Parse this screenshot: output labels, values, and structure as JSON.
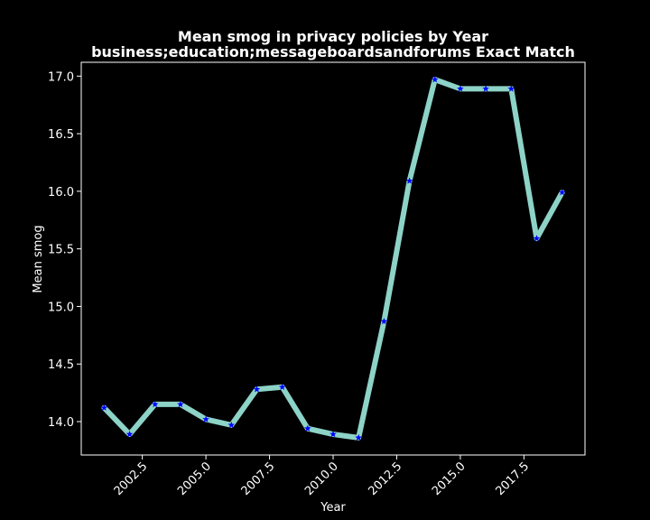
{
  "chart_data": {
    "type": "line",
    "title": "Mean smog in privacy policies by Year",
    "subtitle": "business;education;messageboardsandforums Exact Match",
    "xlabel": "Year",
    "ylabel": "Mean smog",
    "xlim": [
      2000.1,
      2019.9
    ],
    "ylim": [
      13.71,
      17.12
    ],
    "x_ticks": [
      {
        "value": 2002.5,
        "label": "2002.5"
      },
      {
        "value": 2005.0,
        "label": "2005.0"
      },
      {
        "value": 2007.5,
        "label": "2007.5"
      },
      {
        "value": 2010.0,
        "label": "2010.0"
      },
      {
        "value": 2012.5,
        "label": "2012.5"
      },
      {
        "value": 2015.0,
        "label": "2015.0"
      },
      {
        "value": 2017.5,
        "label": "2017.5"
      }
    ],
    "y_ticks": [
      {
        "value": 14.0,
        "label": "14.0"
      },
      {
        "value": 14.5,
        "label": "14.5"
      },
      {
        "value": 15.0,
        "label": "15.0"
      },
      {
        "value": 15.5,
        "label": "15.5"
      },
      {
        "value": 16.0,
        "label": "16.0"
      },
      {
        "value": 16.5,
        "label": "16.5"
      },
      {
        "value": 17.0,
        "label": "17.0"
      }
    ],
    "grid": false,
    "series": [
      {
        "x": [
          2001,
          2002,
          2003,
          2004,
          2005,
          2006,
          2007,
          2008,
          2009,
          2010,
          2011,
          2012,
          2013,
          2014,
          2015,
          2016,
          2017,
          2018,
          2019
        ],
        "y": [
          14.12,
          13.89,
          14.15,
          14.15,
          14.02,
          13.97,
          14.28,
          14.3,
          13.94,
          13.89,
          13.86,
          14.87,
          16.09,
          16.97,
          16.89,
          16.89,
          16.89,
          15.59,
          15.99
        ],
        "line_color": "#8dd3c7",
        "marker": "star",
        "marker_color": "#0000ff"
      }
    ]
  },
  "colors": {
    "background": "#000000",
    "foreground": "#ffffff",
    "line": "#8dd3c7",
    "marker": "#0000ff"
  }
}
